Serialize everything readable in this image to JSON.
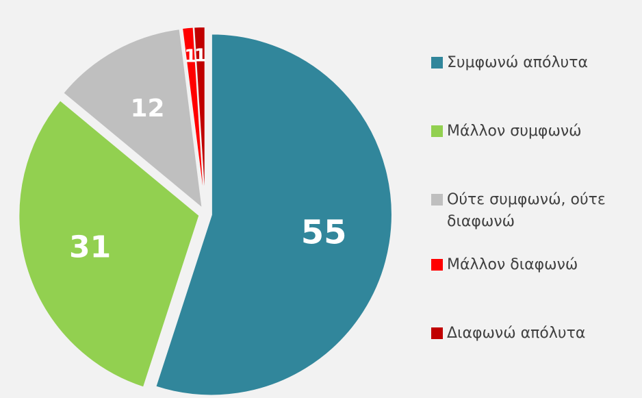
{
  "chart_data": {
    "type": "pie",
    "categories": [
      "Συμφωνώ απόλυτα",
      "Μάλλον συμφωνώ",
      "Ούτε συμφωνώ, ούτε διαφωνώ",
      "Μάλλον διαφωνώ",
      "Διαφωνώ απόλυτα"
    ],
    "values": [
      55,
      31,
      12,
      1,
      1
    ],
    "colors": [
      "#31869b",
      "#92d050",
      "#bfbfbf",
      "#ff0000",
      "#c00000"
    ],
    "legend": "right"
  }
}
